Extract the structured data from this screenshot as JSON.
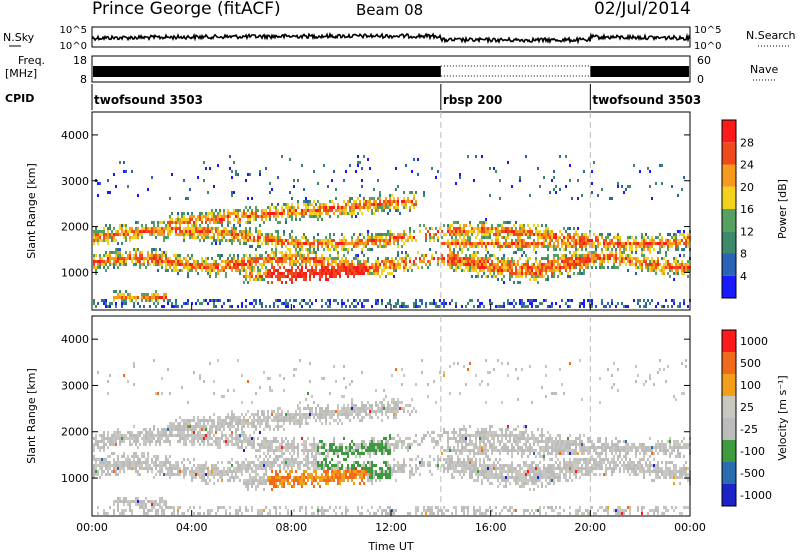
{
  "header": {
    "title": "Prince George (fitACF)",
    "beam": "Beam 08",
    "date": "02/Jul/2014"
  },
  "top_panels": {
    "nsky_label": "N.Sky",
    "nsky_ticks": [
      "10^5",
      "10^0"
    ],
    "nsearch_label": "N.Search",
    "freq_label_line1": "Freq.",
    "freq_label_line2": "[MHz]",
    "freq_ticks": [
      "18",
      "8"
    ],
    "nave_ticks": [
      "60",
      "0"
    ],
    "nave_label": "Nave",
    "cpid_label": "CPID"
  },
  "chart_data": [
    {
      "type": "heatmap",
      "name": "power",
      "ylabel": "Slant Range [km]",
      "ylim": [
        180,
        4500
      ],
      "yticks": [
        1000,
        2000,
        3000,
        4000
      ],
      "colorbar": {
        "label": "Power [dB]",
        "ticks": [
          4,
          8,
          12,
          16,
          20,
          24,
          28
        ],
        "colors": [
          "#1a1aff",
          "#2a62b8",
          "#3d8a6a",
          "#56a060",
          "#f2d21c",
          "#f59a1c",
          "#ee4a1c",
          "#ff1a1a"
        ]
      }
    },
    {
      "type": "heatmap",
      "name": "velocity",
      "ylabel": "Slant Range [km]",
      "xlabel": "Time UT",
      "ylim": [
        180,
        4500
      ],
      "yticks": [
        1000,
        2000,
        3000,
        4000
      ],
      "xticks": [
        "00:00",
        "04:00",
        "08:00",
        "12:00",
        "16:00",
        "20:00",
        "00:00"
      ],
      "xlim_hours": [
        0,
        24
      ],
      "colorbar": {
        "label": "Velocity [m s⁻¹]",
        "ticks": [
          "1000",
          "500",
          "100",
          "25",
          "-25",
          "-100",
          "-500",
          "-1000"
        ],
        "colors": [
          "#1c24c8",
          "#2b6cae",
          "#3e9a3e",
          "#bcbcbc",
          "#c8c8c0",
          "#f2a01c",
          "#f26a1c",
          "#ff1a1a"
        ]
      }
    }
  ],
  "cpid": {
    "segments": [
      {
        "label": "twofsound 3503",
        "start_hour": 0
      },
      {
        "label": "rbsp 200",
        "start_hour": 14
      },
      {
        "label": "twofsound 3503",
        "start_hour": 20
      }
    ]
  }
}
